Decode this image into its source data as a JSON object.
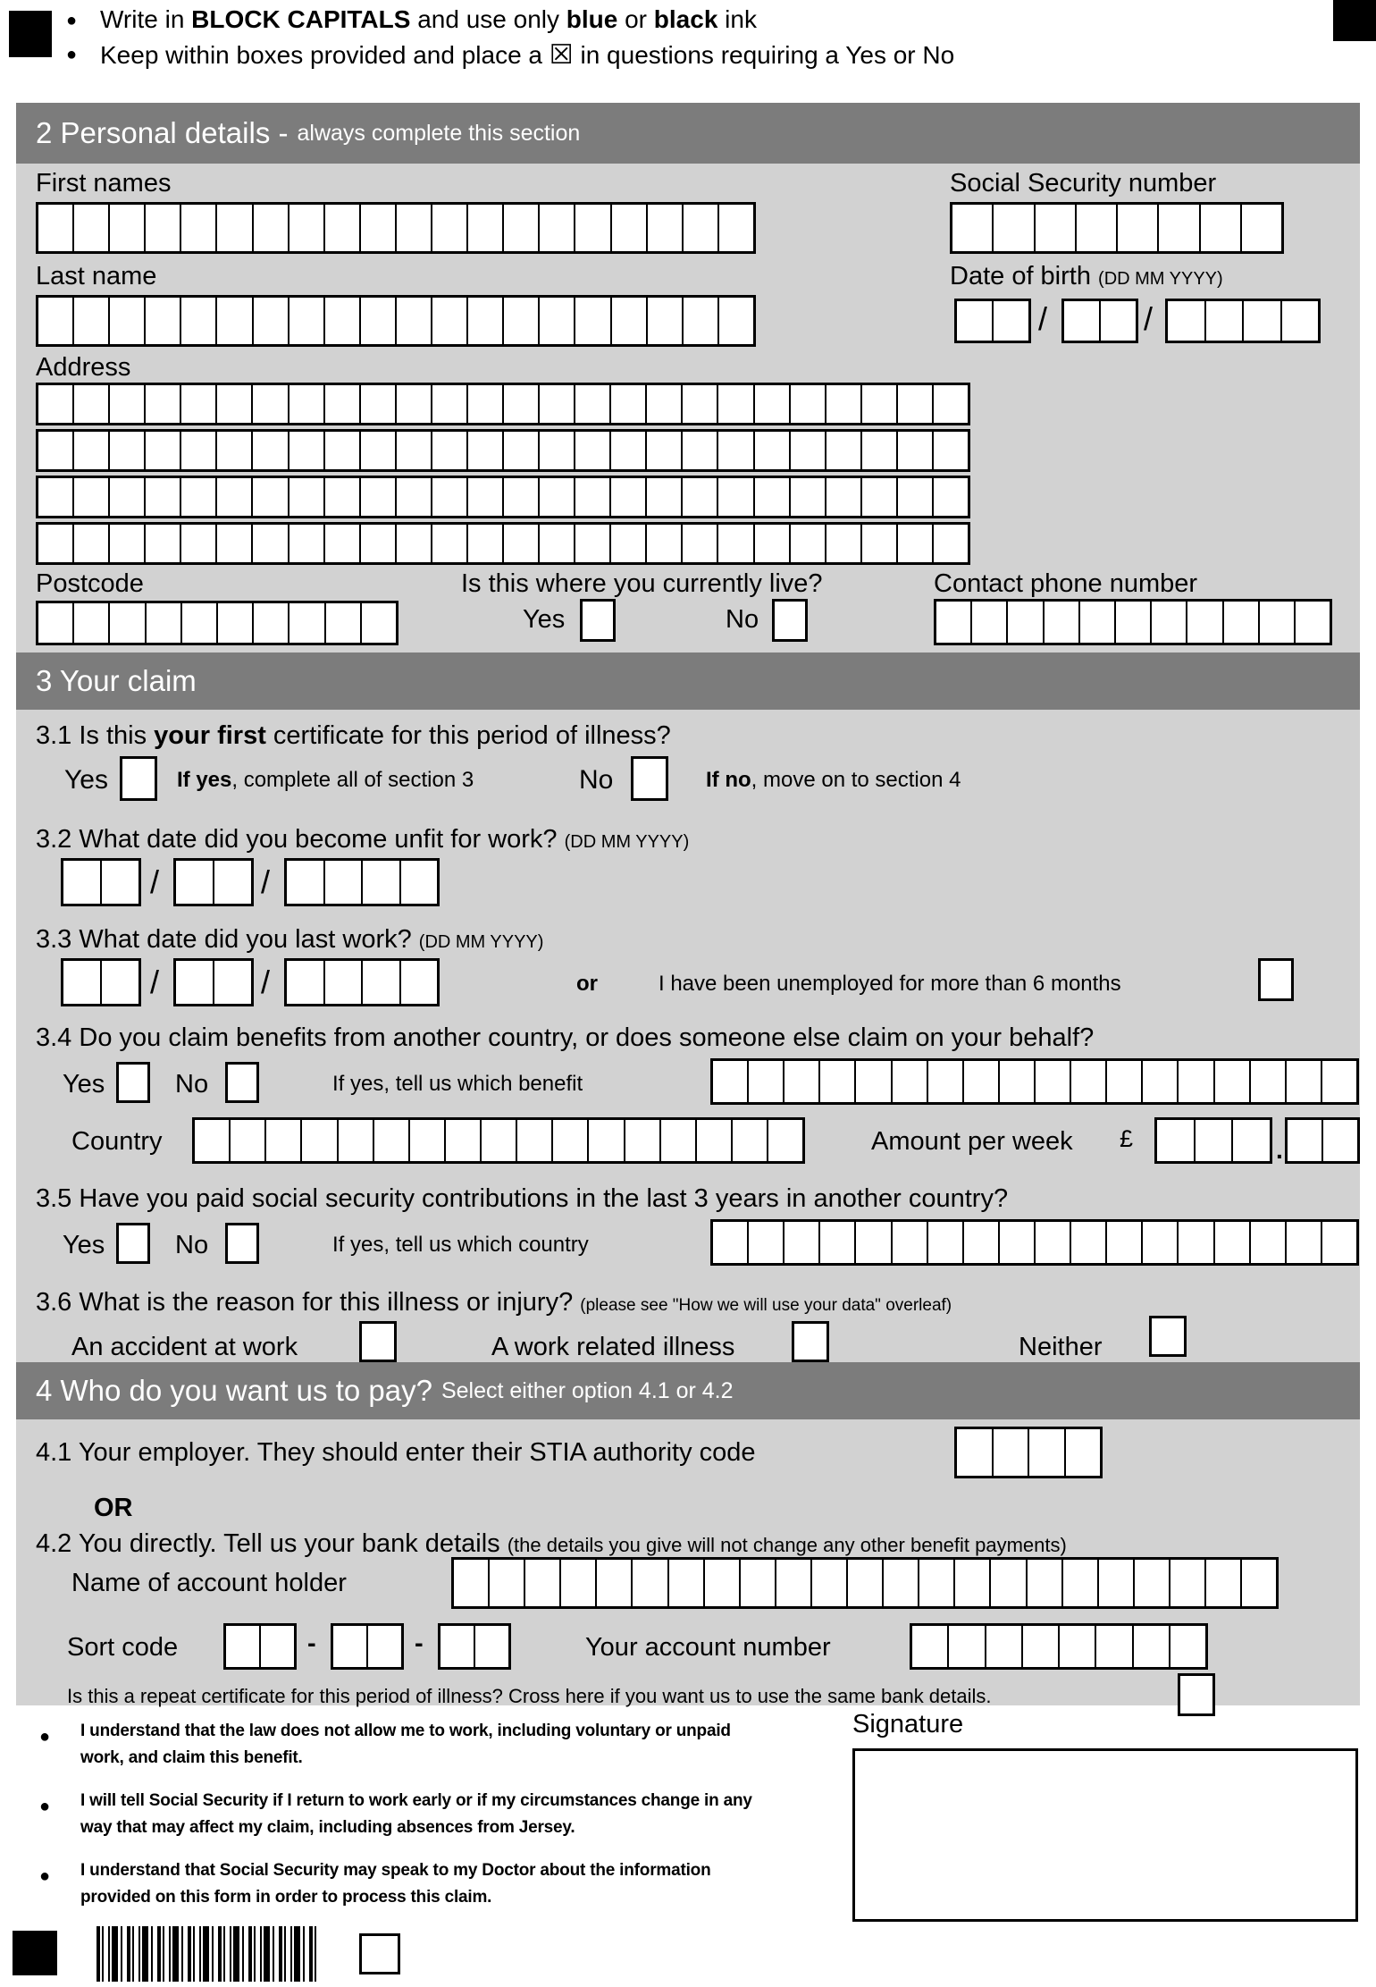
{
  "colors": {
    "band": "#7c7c7c",
    "panel": "#d2d2d2"
  },
  "top": {
    "bullet": "●",
    "b1": [
      "Write in ",
      "BLOCK CAPITALS",
      " and use only ",
      "blue",
      " or ",
      "black",
      " ink"
    ],
    "b2_pre": "Keep within boxes provided and place a ",
    "b2_box": "☒",
    "b2_post": " in questions requiring a Yes or No"
  },
  "common": {
    "date_format": "(DD MM YYYY)",
    "slash": "/",
    "yes": "Yes",
    "no": "No"
  },
  "section2": {
    "title": "2 Personal details -",
    "subtitle": "always complete this section",
    "first_names": "First names",
    "ssn": "Social Security number",
    "last_name": "Last name",
    "dob": "Date of birth",
    "address": "Address",
    "postcode": "Postcode",
    "live_question": "Is this where you currently live?",
    "phone": "Contact phone number"
  },
  "section3": {
    "title": "3 Your claim",
    "q31": [
      "3.1 Is this ",
      "your first",
      " certificate for this period of illness?"
    ],
    "if_yes_bold": "If yes",
    "if_yes_rest": ", complete all of section 3",
    "if_no_bold": "If no",
    "if_no_rest": ", move on to section 4",
    "q32": "3.2 What date did you become unfit for work?",
    "q33": "3.3 What date did you last work?",
    "or": "or",
    "unemployed": "I have been unemployed for more than 6 months",
    "q34": "3.4 Do you claim benefits from another country, or does someone else claim on your behalf?",
    "which_benefit": "If yes, tell us which benefit",
    "country": "Country",
    "amount": "Amount per week",
    "pound": "£",
    "decimal": ".",
    "q35": "3.5 Have you paid social security contributions in the last 3 years in another country?",
    "which_country": "If yes, tell us which country",
    "q36": "3.6 What is the reason for this illness or injury?",
    "q36_note": "(please see \"How we will use your data\" overleaf)",
    "opt_accident": "An accident at work",
    "opt_illness": "A work related illness",
    "opt_neither": "Neither"
  },
  "section4": {
    "title": "4 Who do you want us to pay?",
    "subtitle": "Select either option 4.1 or 4.2",
    "q41": "4.1 Your employer. They should enter their STIA authority code",
    "or": "OR",
    "q42": "4.2 You directly. Tell us your bank details",
    "q42_note": "(the details you give will not change any other benefit payments)",
    "account_holder": "Name of account holder",
    "sort_code": "Sort code",
    "dash": "-",
    "account_number": "Your account number",
    "repeat": "Is this a repeat certificate for this period of illness? Cross here if you want us to use the same bank details."
  },
  "declarations": {
    "bullet": "●",
    "items": [
      [
        "I understand that the law does not allow me to work, including voluntary or unpaid",
        "work, and claim this benefit."
      ],
      [
        "I will tell Social Security if I return to work early or if my circumstances change in any",
        "way that may affect my claim, including absences from Jersey."
      ],
      [
        "I understand that Social Security may speak to my Doctor about the information",
        "provided on this form in order to process this claim."
      ]
    ],
    "signature": "Signature"
  }
}
